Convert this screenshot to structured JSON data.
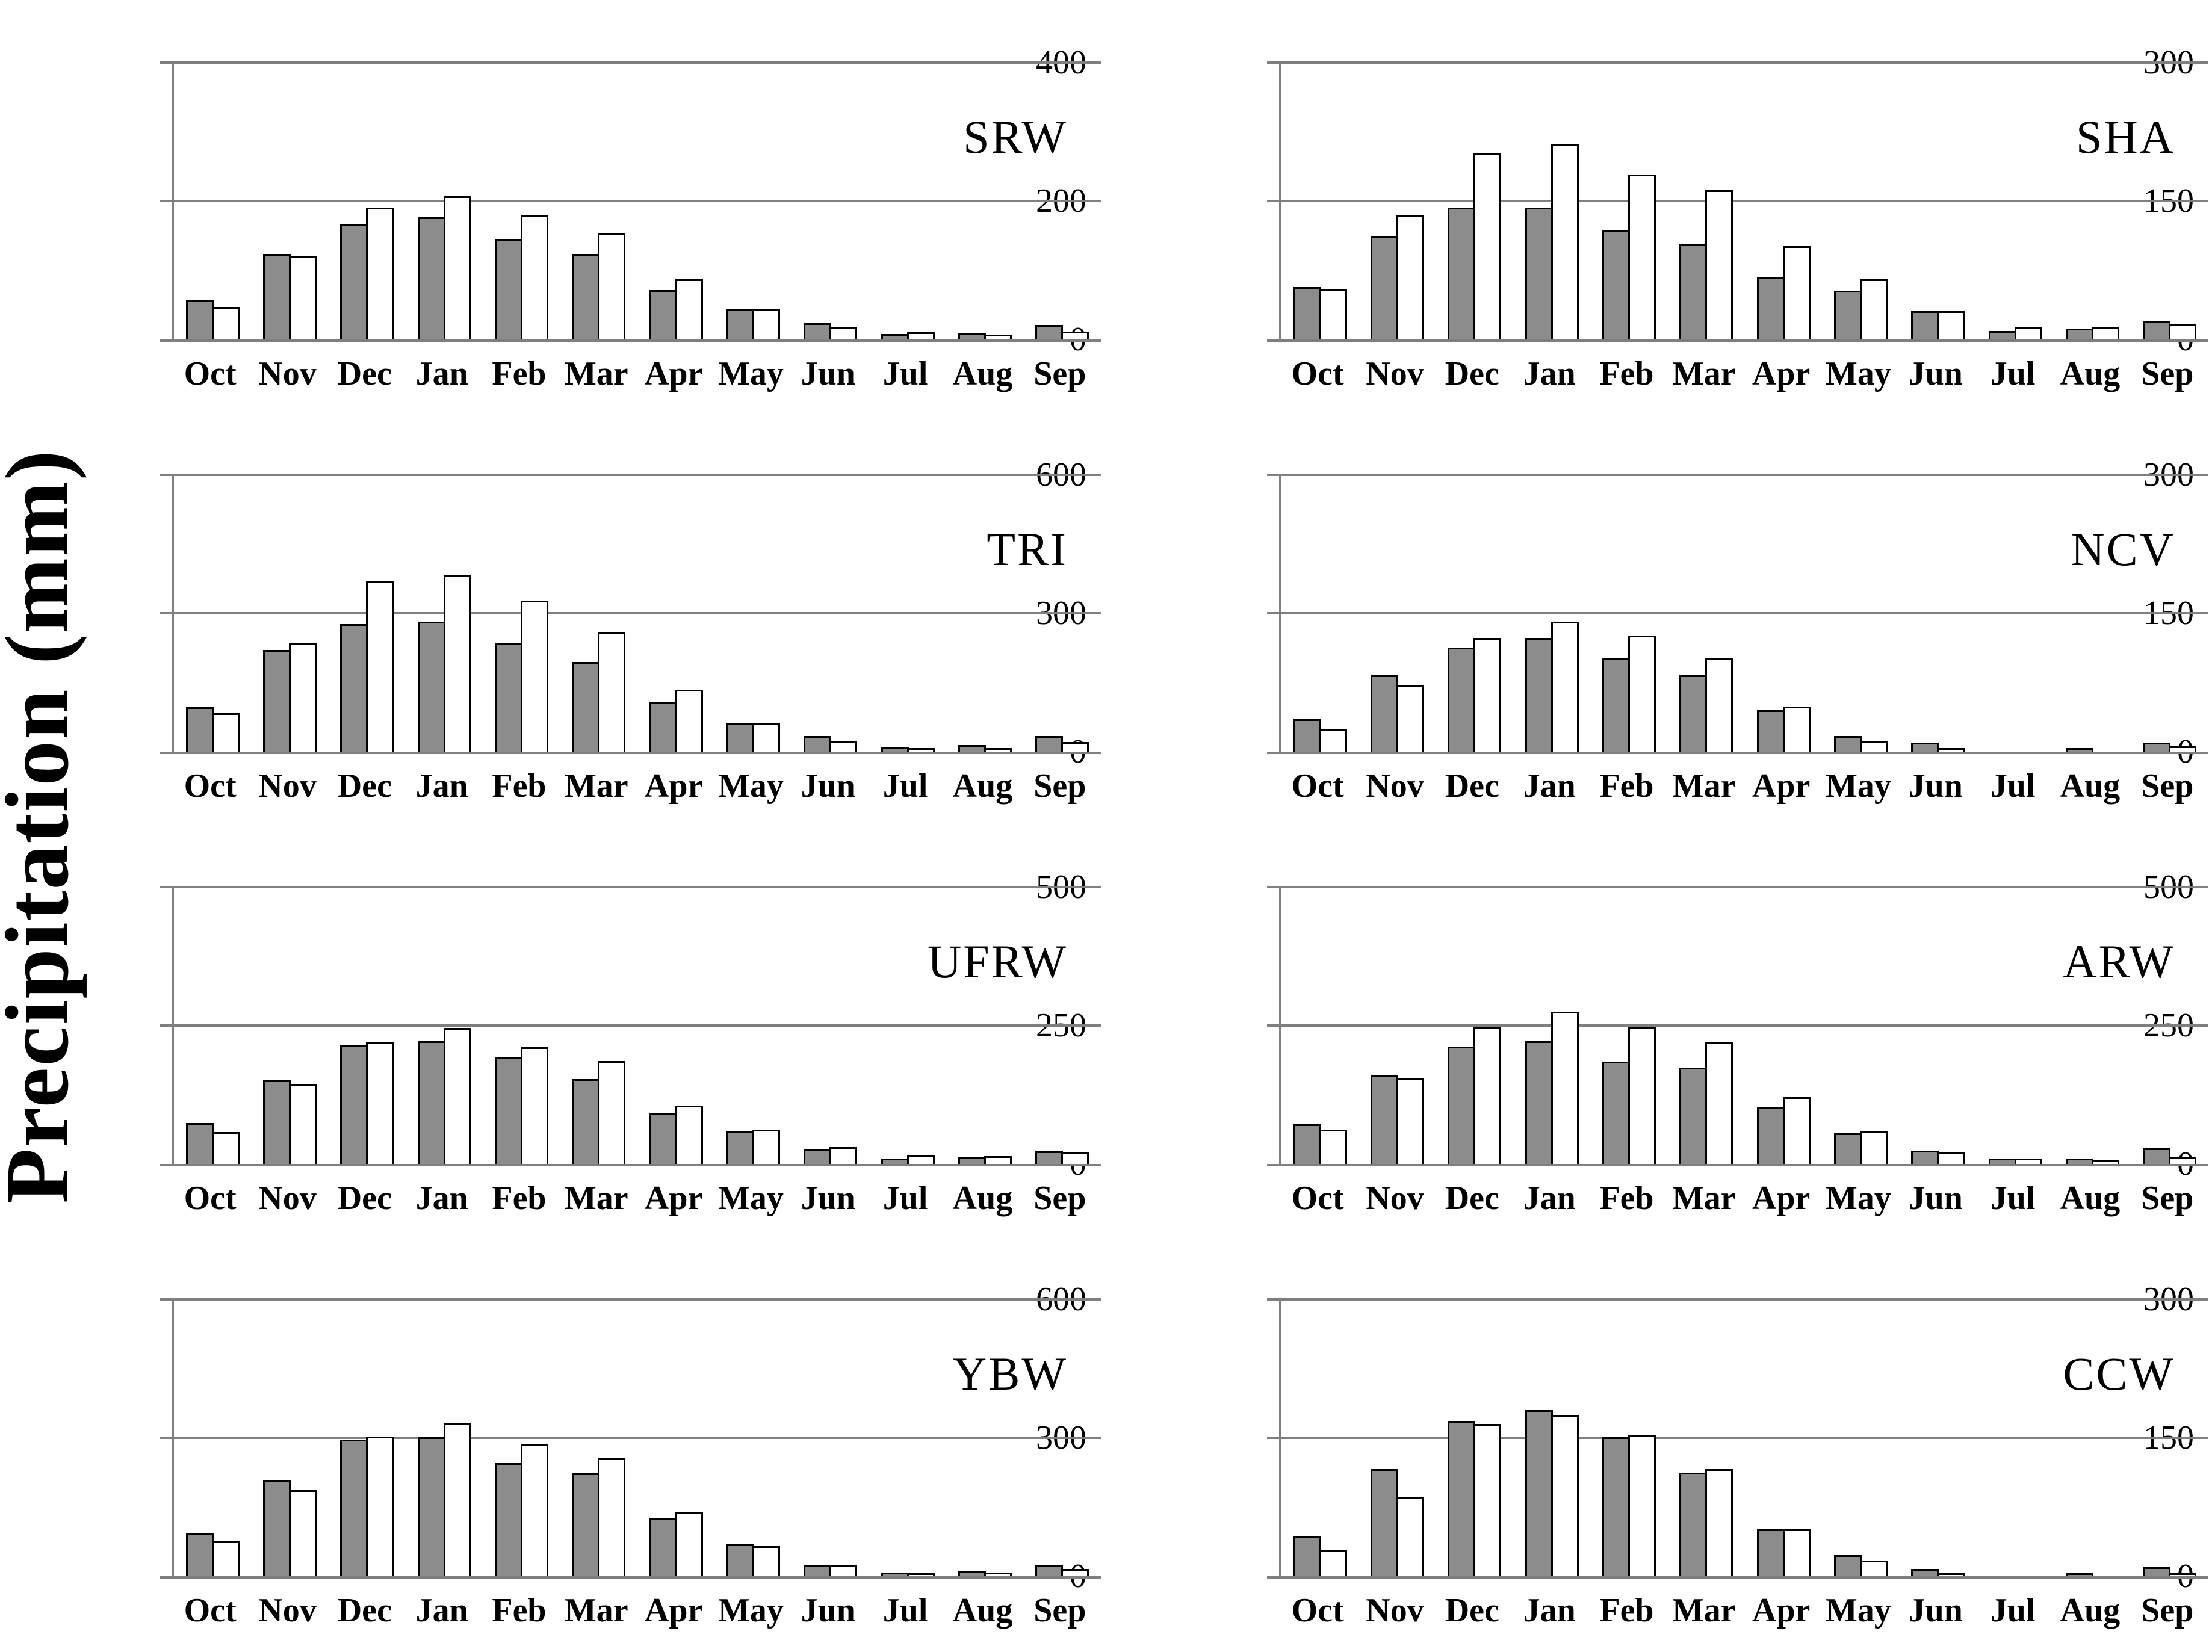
{
  "ylabel": "Precipitation (mm)",
  "months": [
    "Oct",
    "Nov",
    "Dec",
    "Jan",
    "Feb",
    "Mar",
    "Apr",
    "May",
    "Jun",
    "Jul",
    "Aug",
    "Sep"
  ],
  "colors": {
    "bar_gray_fill": "#8c8c8c",
    "bar_white_fill": "#ffffff",
    "bar_border": "#000000",
    "axis_gray": "#7f7f7f"
  },
  "chart_data": [
    {
      "type": "bar",
      "title": "SRW",
      "ylim": [
        0,
        400
      ],
      "yticks": [
        0,
        200,
        400
      ],
      "grid": true,
      "legend": "none",
      "categories": [
        "Oct",
        "Nov",
        "Dec",
        "Jan",
        "Feb",
        "Mar",
        "Apr",
        "May",
        "Jun",
        "Jul",
        "Aug",
        "Sep"
      ],
      "series": [
        {
          "name": "gray",
          "values": [
            55,
            121,
            164,
            174,
            143,
            121,
            69,
            42,
            21,
            5,
            6,
            18
          ]
        },
        {
          "name": "white",
          "values": [
            44,
            118,
            188,
            204,
            177,
            151,
            84,
            42,
            15,
            8,
            4,
            9
          ]
        }
      ]
    },
    {
      "type": "bar",
      "title": "SHA",
      "ylim": [
        0,
        300
      ],
      "yticks": [
        0,
        150,
        300
      ],
      "grid": true,
      "legend": "none",
      "categories": [
        "Oct",
        "Nov",
        "Dec",
        "Jan",
        "Feb",
        "Mar",
        "Apr",
        "May",
        "Jun",
        "Jul",
        "Aug",
        "Sep"
      ],
      "series": [
        {
          "name": "gray",
          "values": [
            55,
            110,
            141,
            141,
            116,
            102,
            65,
            51,
            29,
            7,
            10,
            18
          ]
        },
        {
          "name": "white",
          "values": [
            52,
            133,
            200,
            210,
            177,
            160,
            99,
            63,
            29,
            12,
            12,
            15
          ]
        }
      ]
    },
    {
      "type": "bar",
      "title": "TRI",
      "ylim": [
        0,
        600
      ],
      "yticks": [
        0,
        300,
        600
      ],
      "grid": true,
      "legend": "none",
      "categories": [
        "Oct",
        "Nov",
        "Dec",
        "Jan",
        "Feb",
        "Mar",
        "Apr",
        "May",
        "Jun",
        "Jul",
        "Aug",
        "Sep"
      ],
      "series": [
        {
          "name": "gray",
          "values": [
            92,
            217,
            273,
            278,
            231,
            190,
            104,
            59,
            30,
            7,
            11,
            30
          ]
        },
        {
          "name": "white",
          "values": [
            79,
            231,
            366,
            380,
            323,
            256,
            131,
            59,
            19,
            4,
            4,
            17
          ]
        }
      ]
    },
    {
      "type": "bar",
      "title": "NCV",
      "ylim": [
        0,
        300
      ],
      "yticks": [
        0,
        150,
        300
      ],
      "grid": true,
      "legend": "none",
      "categories": [
        "Oct",
        "Nov",
        "Dec",
        "Jan",
        "Feb",
        "Mar",
        "Apr",
        "May",
        "Jun",
        "Jul",
        "Aug",
        "Sep"
      ],
      "series": [
        {
          "name": "gray",
          "values": [
            33,
            81,
            111,
            121,
            99,
            81,
            43,
            15,
            8,
            0,
            2,
            8
          ]
        },
        {
          "name": "white",
          "values": [
            22,
            70,
            121,
            139,
            124,
            99,
            47,
            10,
            2,
            0,
            0,
            4
          ]
        }
      ]
    },
    {
      "type": "bar",
      "title": "UFRW",
      "ylim": [
        0,
        500
      ],
      "yticks": [
        0,
        250,
        500
      ],
      "grid": true,
      "legend": "none",
      "categories": [
        "Oct",
        "Nov",
        "Dec",
        "Jan",
        "Feb",
        "Mar",
        "Apr",
        "May",
        "Jun",
        "Jul",
        "Aug",
        "Sep"
      ],
      "series": [
        {
          "name": "gray",
          "values": [
            71,
            148,
            211,
            219,
            189,
            150,
            88,
            56,
            23,
            6,
            9,
            20
          ]
        },
        {
          "name": "white",
          "values": [
            54,
            140,
            217,
            242,
            208,
            183,
            102,
            59,
            27,
            13,
            11,
            17
          ]
        }
      ]
    },
    {
      "type": "bar",
      "title": "ARW",
      "ylim": [
        0,
        500
      ],
      "yticks": [
        0,
        250,
        500
      ],
      "grid": true,
      "legend": "none",
      "categories": [
        "Oct",
        "Nov",
        "Dec",
        "Jan",
        "Feb",
        "Mar",
        "Apr",
        "May",
        "Jun",
        "Jul",
        "Aug",
        "Sep"
      ],
      "series": [
        {
          "name": "gray",
          "values": [
            68,
            158,
            209,
            219,
            181,
            171,
            100,
            52,
            21,
            6,
            7,
            25
          ]
        },
        {
          "name": "white",
          "values": [
            59,
            152,
            244,
            272,
            243,
            217,
            117,
            56,
            17,
            7,
            3,
            10
          ]
        }
      ]
    },
    {
      "type": "bar",
      "title": "YBW",
      "ylim": [
        0,
        600
      ],
      "yticks": [
        0,
        300,
        600
      ],
      "grid": true,
      "legend": "none",
      "categories": [
        "Oct",
        "Nov",
        "Dec",
        "Jan",
        "Feb",
        "Mar",
        "Apr",
        "May",
        "Jun",
        "Jul",
        "Aug",
        "Sep"
      ],
      "series": [
        {
          "name": "gray",
          "values": [
            90,
            205,
            292,
            298,
            241,
            219,
            122,
            65,
            19,
            4,
            7,
            19
          ]
        },
        {
          "name": "white",
          "values": [
            72,
            183,
            299,
            329,
            283,
            252,
            134,
            61,
            19,
            2,
            4,
            12
          ]
        }
      ]
    },
    {
      "type": "bar",
      "title": "CCW",
      "ylim": [
        0,
        300
      ],
      "yticks": [
        0,
        150,
        300
      ],
      "grid": true,
      "legend": "none",
      "categories": [
        "Oct",
        "Nov",
        "Dec",
        "Jan",
        "Feb",
        "Mar",
        "Apr",
        "May",
        "Jun",
        "Jul",
        "Aug",
        "Sep"
      ],
      "series": [
        {
          "name": "gray",
          "values": [
            42,
            114,
            166,
            178,
            149,
            110,
            49,
            21,
            6,
            0,
            1,
            8
          ]
        },
        {
          "name": "white",
          "values": [
            26,
            84,
            163,
            172,
            151,
            114,
            49,
            15,
            1,
            0,
            0,
            1
          ]
        }
      ]
    }
  ]
}
